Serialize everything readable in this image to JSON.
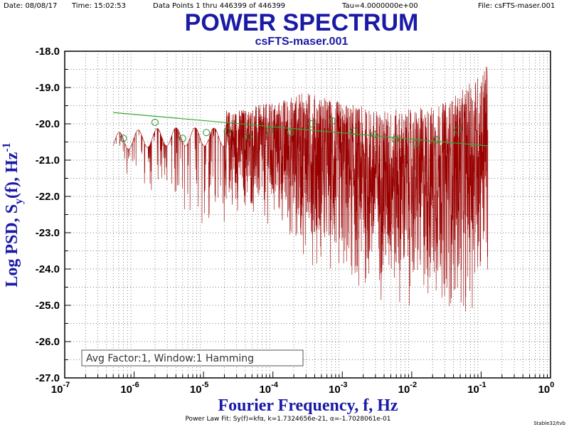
{
  "header": {
    "date": "Date: 08/08/17",
    "time": "Time: 15:02:53",
    "points": "Data Points 1 thru 446399 of 446399",
    "tau": "Tau=4.0000000e+00",
    "file": "File: csFTS-maser.001"
  },
  "footer": {
    "fit": "Power Law Fit: Sy(f)=kfα, k=1.7324656e-21, α=-1.7028061e-01",
    "signature": "Stable32/tvb"
  },
  "chart_data": {
    "type": "line",
    "title": "POWER SPECTRUM",
    "subtitle": "csFTS-maser.001",
    "xlabel": "Fourier Frequency, f, Hz",
    "ylabel": "Log PSD, Sy(f), Hz-1",
    "ylabel_parts": {
      "main": "Log PSD, S",
      "sub": "y",
      "rest": "(f), Hz",
      "sup": "-1"
    },
    "xlabel_parts": {
      "main": "Fourier Frequency, f, Hz"
    },
    "xscale": "log",
    "xlim": [
      1e-07,
      1
    ],
    "ylim": [
      -27.0,
      -18.0
    ],
    "x_ticks": [
      {
        "value": 1e-07,
        "base": "10",
        "exp": "-7"
      },
      {
        "value": 1e-06,
        "base": "10",
        "exp": "-6"
      },
      {
        "value": 1e-05,
        "base": "10",
        "exp": "-5"
      },
      {
        "value": 0.0001,
        "base": "10",
        "exp": "-4"
      },
      {
        "value": 0.001,
        "base": "10",
        "exp": "-3"
      },
      {
        "value": 0.01,
        "base": "10",
        "exp": "-2"
      },
      {
        "value": 0.1,
        "base": "10",
        "exp": "-1"
      },
      {
        "value": 1,
        "base": "10",
        "exp": "0"
      }
    ],
    "y_ticks": [
      "-18.0",
      "-19.0",
      "-20.0",
      "-21.0",
      "-22.0",
      "-23.0",
      "-24.0",
      "-25.0",
      "-26.0",
      "-27.0"
    ],
    "grid": true,
    "annotation": "Avg Factor:1, Window:1 Hamming",
    "series": [
      {
        "role": "psd",
        "color": "#990000",
        "envelope": {
          "f": [
            5e-07,
            1e-06,
            3e-06,
            1e-05,
            3e-05,
            0.0001,
            0.0003,
            0.001,
            0.003,
            0.01,
            0.03,
            0.06,
            0.125
          ],
          "upper": [
            -20.2,
            -20.0,
            -19.8,
            -19.7,
            -19.6,
            -19.4,
            -19.1,
            -19.4,
            -19.6,
            -19.6,
            -19.4,
            -19.0,
            -18.3
          ],
          "lower": [
            -20.5,
            -21.0,
            -21.5,
            -22.0,
            -22.5,
            -23.0,
            -23.8,
            -24.6,
            -25.0,
            -25.2,
            -25.2,
            -25.5,
            -24.5
          ]
        }
      },
      {
        "role": "octave-average",
        "color": "#2e8b2e",
        "points": [
          {
            "f": 7e-07,
            "y": -20.4
          },
          {
            "f": 2e-06,
            "y": -19.96
          },
          {
            "f": 5e-06,
            "y": -20.4
          },
          {
            "f": 1.1e-05,
            "y": -20.24
          },
          {
            "f": 2.2e-05,
            "y": -20.2
          },
          {
            "f": 4.5e-05,
            "y": -20.36
          },
          {
            "f": 9e-05,
            "y": -20.18
          },
          {
            "f": 0.00018,
            "y": -20.24
          },
          {
            "f": 0.00036,
            "y": -20.0
          },
          {
            "f": 0.00072,
            "y": -19.92
          },
          {
            "f": 0.00145,
            "y": -20.2
          },
          {
            "f": 0.0029,
            "y": -20.3
          },
          {
            "f": 0.0058,
            "y": -20.43
          },
          {
            "f": 0.0116,
            "y": -20.54
          },
          {
            "f": 0.023,
            "y": -20.44
          },
          {
            "f": 0.046,
            "y": -20.17
          }
        ]
      },
      {
        "role": "power-law-fit",
        "color": "#33aa33",
        "k": 1.7324656e-21,
        "alpha": -0.17028061,
        "f_range": [
          5e-07,
          0.125
        ]
      }
    ]
  }
}
